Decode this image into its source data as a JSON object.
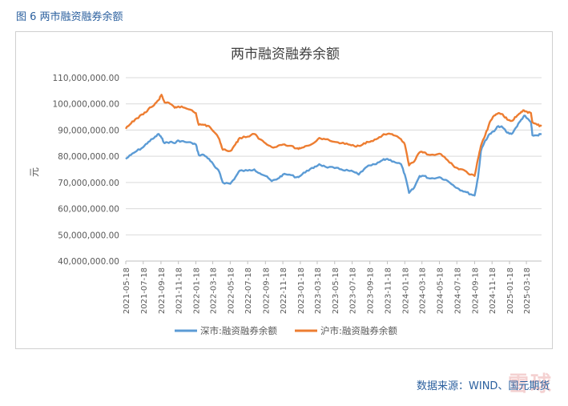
{
  "figure_caption": "图 6  两市融资融券余额",
  "source_note": "数据来源：WIND、国元期货",
  "watermark_text": "雪球",
  "colors": {
    "caption": "#2a5f9e",
    "shenzhen": "#5b9bd5",
    "shanghai": "#ed7d31",
    "grid": "#d9d9d9",
    "axis_text": "#595959"
  },
  "chart_data": {
    "type": "line",
    "title": "两市融资融券余额",
    "xlabel": "",
    "ylabel": "元",
    "ylim": [
      40000000,
      110000000
    ],
    "yticks": [
      40000000,
      50000000,
      60000000,
      70000000,
      80000000,
      90000000,
      100000000,
      110000000
    ],
    "ytick_labels": [
      "40,000,000.00",
      "50,000,000.00",
      "60,000,000.00",
      "70,000,000.00",
      "80,000,000.00",
      "90,000,000.00",
      "100,000,000.00",
      "110,000,000.00"
    ],
    "x_tick_labels": [
      "2021-05-18",
      "2021-07-18",
      "2021-09-18",
      "2021-11-18",
      "2022-01-18",
      "2022-03-18",
      "2022-05-18",
      "2022-07-18",
      "2022-09-18",
      "2022-11-18",
      "2023-01-18",
      "2023-03-18",
      "2023-05-18",
      "2023-07-18",
      "2023-09-18",
      "2023-11-18",
      "2024-01-18",
      "2024-03-18",
      "2024-05-18",
      "2024-07-18",
      "2024-09-18",
      "2024-11-18",
      "2025-01-18",
      "2025-03-18"
    ],
    "x_range": [
      "2021-05-18",
      "2025-05-10"
    ],
    "grid": true,
    "legend_position": "bottom",
    "series": [
      {
        "name": "深市:融资融券余额",
        "color": "#5b9bd5",
        "points": [
          [
            "2021-05-18",
            79000000
          ],
          [
            "2021-06-05",
            80500000
          ],
          [
            "2021-06-25",
            82000000
          ],
          [
            "2021-07-18",
            83500000
          ],
          [
            "2021-08-05",
            85500000
          ],
          [
            "2021-08-25",
            87000000
          ],
          [
            "2021-09-10",
            88500000
          ],
          [
            "2021-09-20",
            87000000
          ],
          [
            "2021-10-01",
            85000000
          ],
          [
            "2021-10-20",
            85500000
          ],
          [
            "2021-11-05",
            85000000
          ],
          [
            "2021-11-18",
            86000000
          ],
          [
            "2021-12-10",
            85500000
          ],
          [
            "2022-01-05",
            85000000
          ],
          [
            "2022-01-18",
            84500000
          ],
          [
            "2022-01-28",
            80500000
          ],
          [
            "2022-02-15",
            80500000
          ],
          [
            "2022-03-05",
            79000000
          ],
          [
            "2022-03-25",
            76000000
          ],
          [
            "2022-04-10",
            74000000
          ],
          [
            "2022-04-22",
            70000000
          ],
          [
            "2022-05-18",
            69500000
          ],
          [
            "2022-06-05",
            72000000
          ],
          [
            "2022-06-20",
            74500000
          ],
          [
            "2022-07-18",
            74500000
          ],
          [
            "2022-08-10",
            75000000
          ],
          [
            "2022-08-30",
            73500000
          ],
          [
            "2022-09-18",
            72500000
          ],
          [
            "2022-10-10",
            70500000
          ],
          [
            "2022-11-01",
            71500000
          ],
          [
            "2022-11-18",
            73000000
          ],
          [
            "2022-12-10",
            73000000
          ],
          [
            "2023-01-05",
            72000000
          ],
          [
            "2023-01-18",
            72500000
          ],
          [
            "2023-02-10",
            74500000
          ],
          [
            "2023-03-05",
            75500000
          ],
          [
            "2023-03-25",
            77000000
          ],
          [
            "2023-04-15",
            76000000
          ],
          [
            "2023-05-18",
            75500000
          ],
          [
            "2023-06-10",
            75000000
          ],
          [
            "2023-07-05",
            74500000
          ],
          [
            "2023-07-25",
            74000000
          ],
          [
            "2023-08-10",
            73000000
          ],
          [
            "2023-08-28",
            75000000
          ],
          [
            "2023-09-18",
            76500000
          ],
          [
            "2023-10-10",
            77000000
          ],
          [
            "2023-11-01",
            78500000
          ],
          [
            "2023-11-18",
            79000000
          ],
          [
            "2023-12-10",
            78000000
          ],
          [
            "2024-01-05",
            77000000
          ],
          [
            "2024-01-18",
            73000000
          ],
          [
            "2024-02-02",
            66000000
          ],
          [
            "2024-02-20",
            68000000
          ],
          [
            "2024-03-10",
            72500000
          ],
          [
            "2024-03-25",
            72500000
          ],
          [
            "2024-04-15",
            71500000
          ],
          [
            "2024-05-18",
            72000000
          ],
          [
            "2024-06-10",
            71000000
          ],
          [
            "2024-07-05",
            69000000
          ],
          [
            "2024-07-25",
            67500000
          ],
          [
            "2024-08-15",
            66500000
          ],
          [
            "2024-09-05",
            65500000
          ],
          [
            "2024-09-18",
            65000000
          ],
          [
            "2024-09-30",
            72000000
          ],
          [
            "2024-10-10",
            82000000
          ],
          [
            "2024-10-25",
            86000000
          ],
          [
            "2024-11-10",
            88500000
          ],
          [
            "2024-11-25",
            89500000
          ],
          [
            "2024-12-10",
            91500000
          ],
          [
            "2024-12-25",
            91000000
          ],
          [
            "2025-01-10",
            89000000
          ],
          [
            "2025-01-25",
            88500000
          ],
          [
            "2025-02-10",
            91000000
          ],
          [
            "2025-02-25",
            93500000
          ],
          [
            "2025-03-10",
            95500000
          ],
          [
            "2025-03-20",
            94500000
          ],
          [
            "2025-04-03",
            93000000
          ],
          [
            "2025-04-08",
            88000000
          ],
          [
            "2025-04-25",
            88000000
          ],
          [
            "2025-05-10",
            88500000
          ]
        ]
      },
      {
        "name": "沪市:融资融券余额",
        "color": "#ed7d31",
        "points": [
          [
            "2021-05-18",
            90500000
          ],
          [
            "2021-06-05",
            92500000
          ],
          [
            "2021-06-25",
            94500000
          ],
          [
            "2021-07-18",
            96000000
          ],
          [
            "2021-08-05",
            98000000
          ],
          [
            "2021-08-25",
            99500000
          ],
          [
            "2021-09-10",
            101500000
          ],
          [
            "2021-09-20",
            103500000
          ],
          [
            "2021-10-01",
            100500000
          ],
          [
            "2021-10-20",
            100000000
          ],
          [
            "2021-11-05",
            98500000
          ],
          [
            "2021-11-18",
            99000000
          ],
          [
            "2021-12-10",
            98500000
          ],
          [
            "2022-01-05",
            97500000
          ],
          [
            "2022-01-18",
            96500000
          ],
          [
            "2022-01-28",
            92000000
          ],
          [
            "2022-02-15",
            92000000
          ],
          [
            "2022-03-05",
            91500000
          ],
          [
            "2022-03-25",
            89000000
          ],
          [
            "2022-04-10",
            86500000
          ],
          [
            "2022-04-22",
            82500000
          ],
          [
            "2022-05-18",
            82000000
          ],
          [
            "2022-06-05",
            84500000
          ],
          [
            "2022-06-20",
            87000000
          ],
          [
            "2022-07-18",
            87500000
          ],
          [
            "2022-08-10",
            88500000
          ],
          [
            "2022-08-30",
            86500000
          ],
          [
            "2022-09-18",
            85000000
          ],
          [
            "2022-10-10",
            83500000
          ],
          [
            "2022-11-01",
            84000000
          ],
          [
            "2022-11-18",
            84500000
          ],
          [
            "2022-12-10",
            84000000
          ],
          [
            "2023-01-05",
            83000000
          ],
          [
            "2023-01-18",
            83000000
          ],
          [
            "2023-02-10",
            84000000
          ],
          [
            "2023-03-05",
            85000000
          ],
          [
            "2023-03-25",
            87000000
          ],
          [
            "2023-04-15",
            86500000
          ],
          [
            "2023-05-18",
            85500000
          ],
          [
            "2023-06-10",
            85000000
          ],
          [
            "2023-07-05",
            84500000
          ],
          [
            "2023-07-25",
            84000000
          ],
          [
            "2023-08-10",
            84000000
          ],
          [
            "2023-08-28",
            85000000
          ],
          [
            "2023-09-18",
            85500000
          ],
          [
            "2023-10-10",
            86500000
          ],
          [
            "2023-11-01",
            88000000
          ],
          [
            "2023-11-18",
            88500000
          ],
          [
            "2023-12-10",
            88000000
          ],
          [
            "2024-01-05",
            86500000
          ],
          [
            "2024-01-18",
            84500000
          ],
          [
            "2024-02-02",
            76500000
          ],
          [
            "2024-02-20",
            78000000
          ],
          [
            "2024-03-10",
            81500000
          ],
          [
            "2024-03-25",
            81500000
          ],
          [
            "2024-04-15",
            80500000
          ],
          [
            "2024-05-18",
            81000000
          ],
          [
            "2024-06-10",
            79000000
          ],
          [
            "2024-07-05",
            76500000
          ],
          [
            "2024-07-25",
            75000000
          ],
          [
            "2024-08-15",
            74500000
          ],
          [
            "2024-09-05",
            73000000
          ],
          [
            "2024-09-18",
            72500000
          ],
          [
            "2024-09-30",
            79000000
          ],
          [
            "2024-10-10",
            84000000
          ],
          [
            "2024-10-25",
            88000000
          ],
          [
            "2024-11-10",
            93000000
          ],
          [
            "2024-11-25",
            95500000
          ],
          [
            "2024-12-10",
            96500000
          ],
          [
            "2024-12-25",
            96000000
          ],
          [
            "2025-01-10",
            94000000
          ],
          [
            "2025-01-25",
            93500000
          ],
          [
            "2025-02-10",
            95000000
          ],
          [
            "2025-02-25",
            96500000
          ],
          [
            "2025-03-10",
            97500000
          ],
          [
            "2025-03-20",
            97000000
          ],
          [
            "2025-04-03",
            96500000
          ],
          [
            "2025-04-08",
            93000000
          ],
          [
            "2025-04-25",
            92000000
          ],
          [
            "2025-05-10",
            91500000
          ]
        ]
      }
    ]
  }
}
